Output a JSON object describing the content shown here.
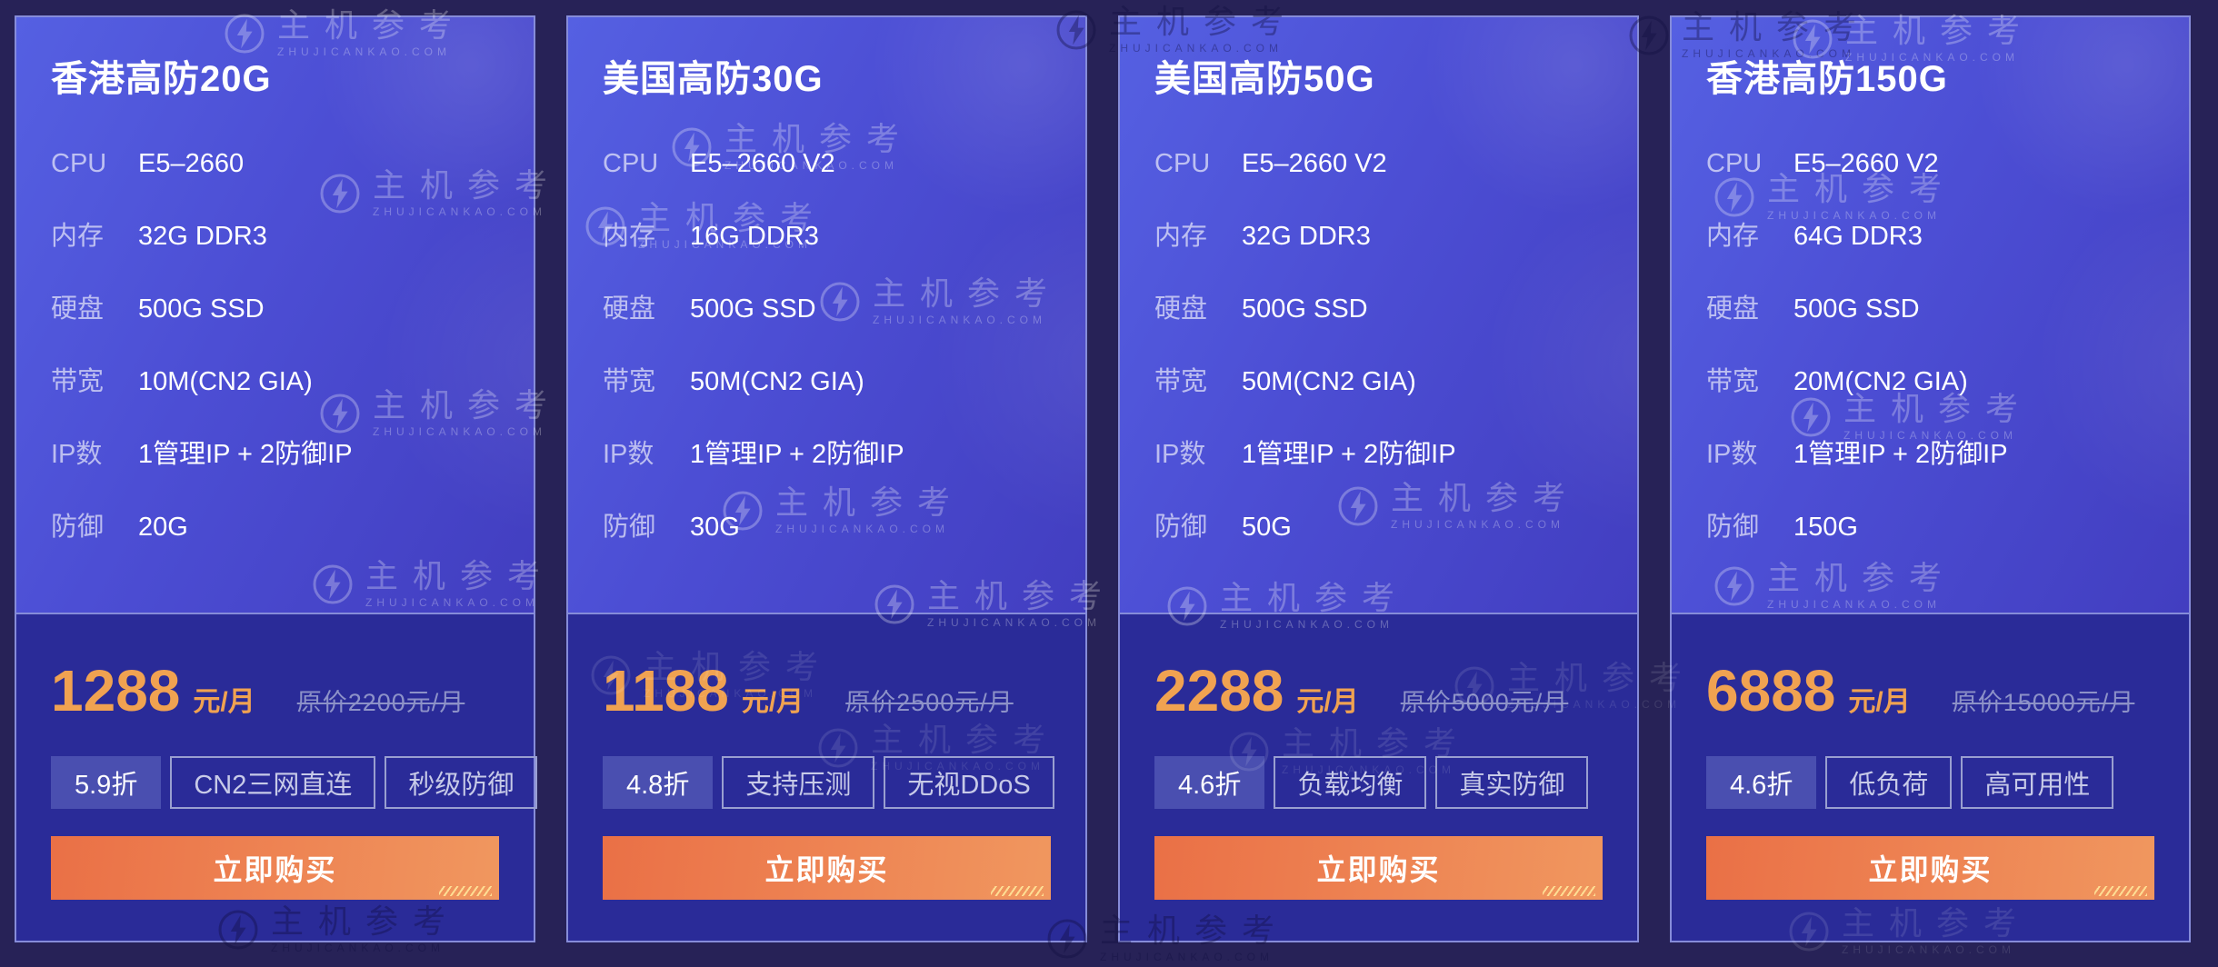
{
  "watermark": {
    "brand": "主机参考",
    "domain": "ZHUJICANKAO.COM"
  },
  "colors": {
    "page_bg": "#272257",
    "spec_panel_top": "#5560e2",
    "spec_panel_bottom": "#423ec0",
    "price_panel_bg": "#2a2b98",
    "card_border": "#868cd9",
    "price_accent": "#f0a251",
    "original_price_text": "#8d92c8",
    "discount_tag_bg": "#4a4fb0",
    "feature_tag_border": "#999fd0",
    "buy_button_gradient_start": "#ea7046",
    "buy_button_gradient_end": "#f0975f"
  },
  "cards": [
    {
      "title": "香港高防20G",
      "specs": [
        {
          "label": "CPU",
          "value": "E5–2660"
        },
        {
          "label": "内存",
          "value": "32G DDR3"
        },
        {
          "label": "硬盘",
          "value": "500G SSD"
        },
        {
          "label": "带宽",
          "value": "10M(CN2 GIA)"
        },
        {
          "label": "IP数",
          "value": "1管理IP + 2防御IP"
        },
        {
          "label": "防御",
          "value": "20G"
        }
      ],
      "price": "1288",
      "price_unit": "元/月",
      "original_price": "原价2200元/月",
      "discount": "5.9折",
      "features": [
        "CN2三网直连",
        "秒级防御"
      ],
      "buy_label": "立即购买"
    },
    {
      "title": "美国高防30G",
      "specs": [
        {
          "label": "CPU",
          "value": "E5–2660 V2"
        },
        {
          "label": "内存",
          "value": "16G DDR3"
        },
        {
          "label": "硬盘",
          "value": "500G SSD"
        },
        {
          "label": "带宽",
          "value": "50M(CN2 GIA)"
        },
        {
          "label": "IP数",
          "value": "1管理IP + 2防御IP"
        },
        {
          "label": "防御",
          "value": "30G"
        }
      ],
      "price": "1188",
      "price_unit": "元/月",
      "original_price": "原价2500元/月",
      "discount": "4.8折",
      "features": [
        "支持压测",
        "无视DDoS"
      ],
      "buy_label": "立即购买"
    },
    {
      "title": "美国高防50G",
      "specs": [
        {
          "label": "CPU",
          "value": "E5–2660 V2"
        },
        {
          "label": "内存",
          "value": "32G DDR3"
        },
        {
          "label": "硬盘",
          "value": "500G SSD"
        },
        {
          "label": "带宽",
          "value": "50M(CN2 GIA)"
        },
        {
          "label": "IP数",
          "value": "1管理IP + 2防御IP"
        },
        {
          "label": "防御",
          "value": "50G"
        }
      ],
      "price": "2288",
      "price_unit": "元/月",
      "original_price": "原价5000元/月",
      "discount": "4.6折",
      "features": [
        "负载均衡",
        "真实防御"
      ],
      "buy_label": "立即购买"
    },
    {
      "title": "香港高防150G",
      "specs": [
        {
          "label": "CPU",
          "value": "E5–2660 V2"
        },
        {
          "label": "内存",
          "value": "64G DDR3"
        },
        {
          "label": "硬盘",
          "value": "500G SSD"
        },
        {
          "label": "带宽",
          "value": "20M(CN2 GIA)"
        },
        {
          "label": "IP数",
          "value": "1管理IP + 2防御IP"
        },
        {
          "label": "防御",
          "value": "150G"
        }
      ],
      "price": "6888",
      "price_unit": "元/月",
      "original_price": "原价15000元/月",
      "discount": "4.6折",
      "features": [
        "低负荷",
        "高可用性"
      ],
      "buy_label": "立即购买"
    }
  ]
}
